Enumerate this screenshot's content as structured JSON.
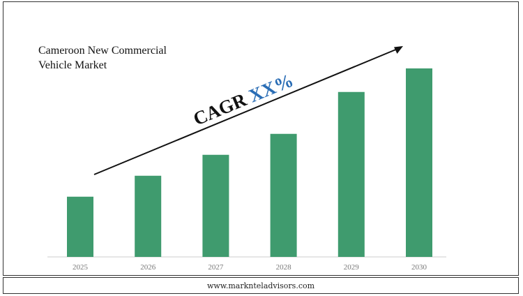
{
  "title_line1": "Cameroon New Commercial",
  "title_line2": "Vehicle Market",
  "annotation": {
    "cagr_label": "CAGR",
    "cagr_value": "XX%"
  },
  "footer": "www.marknteladvisors.com",
  "colors": {
    "bar": "#3f9b6e",
    "accent": "#2a6db5",
    "arrow": "#111111",
    "axis": "#cccccc"
  },
  "chart_data": {
    "type": "bar",
    "title": "Cameroon New Commercial Vehicle Market",
    "categories": [
      "2025",
      "2026",
      "2027",
      "2028",
      "2029",
      "2030"
    ],
    "values": [
      23,
      31,
      39,
      47,
      63,
      72
    ],
    "ylim": [
      0,
      80
    ],
    "grid": false,
    "xlabel": "",
    "ylabel": ""
  }
}
